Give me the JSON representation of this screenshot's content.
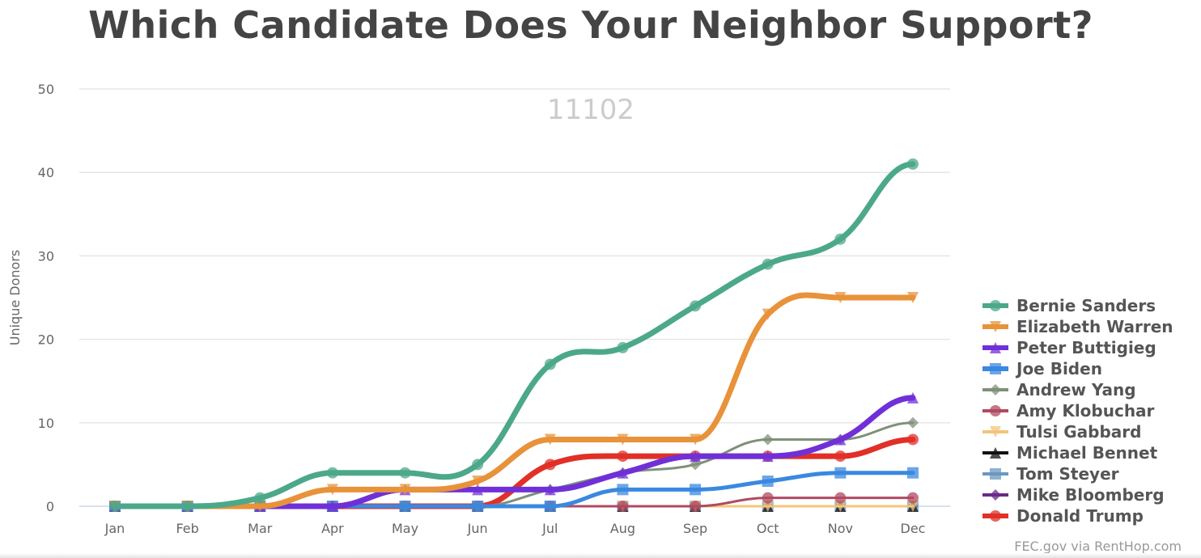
{
  "chart_data": {
    "type": "line",
    "title": "Which Candidate Does Your Neighbor Support?",
    "subtitle": "11102",
    "xlabel": "",
    "ylabel": "Unique Donors",
    "ylim": [
      0,
      50
    ],
    "yticks": [
      "0",
      "10",
      "20",
      "30",
      "40",
      "50"
    ],
    "categories": [
      "Jan",
      "Feb",
      "Mar",
      "Apr",
      "May",
      "Jun",
      "Jul",
      "Aug",
      "Sep",
      "Oct",
      "Nov",
      "Dec"
    ],
    "grid": true,
    "legend_position": "right",
    "credits": "FEC.gov via RentHop.com",
    "series": [
      {
        "name": "Bernie Sanders",
        "color": "#4ca88a",
        "marker": "circle",
        "weight": "thick",
        "values": [
          0,
          0,
          1,
          4,
          4,
          5,
          17,
          19,
          24,
          29,
          32,
          41
        ]
      },
      {
        "name": "Elizabeth Warren",
        "color": "#e8923a",
        "marker": "triangle-down",
        "weight": "thick",
        "values": [
          0,
          0,
          0,
          2,
          2,
          3,
          8,
          8,
          8,
          23,
          25,
          25
        ]
      },
      {
        "name": "Peter Buttigieg",
        "color": "#7030d8",
        "marker": "triangle",
        "weight": "thick",
        "values": [
          0,
          0,
          0,
          0,
          2,
          2,
          2,
          4,
          6,
          6,
          8,
          13
        ]
      },
      {
        "name": "Joe Biden",
        "color": "#3a88e0",
        "marker": "square",
        "weight": "medium",
        "values": [
          0,
          0,
          0,
          0,
          0,
          0,
          0,
          2,
          2,
          3,
          4,
          4
        ]
      },
      {
        "name": "Andrew Yang",
        "color": "#7f9078",
        "marker": "diamond",
        "weight": "thin",
        "values": [
          0,
          0,
          0,
          0,
          0,
          0,
          2,
          4,
          5,
          8,
          8,
          10
        ]
      },
      {
        "name": "Amy Klobuchar",
        "color": "#b04a60",
        "marker": "circle",
        "weight": "thin",
        "values": [
          0,
          0,
          0,
          0,
          0,
          0,
          0,
          0,
          0,
          1,
          1,
          1
        ]
      },
      {
        "name": "Tulsi Gabbard",
        "color": "#f4c47a",
        "marker": "triangle-down",
        "weight": "thin",
        "values": [
          0,
          0,
          0,
          0,
          0,
          0,
          0,
          0,
          0,
          0,
          0,
          0
        ]
      },
      {
        "name": "Michael Bennet",
        "color": "#111111",
        "marker": "triangle",
        "weight": "thin",
        "values": [
          0,
          0,
          0,
          0,
          0,
          0,
          0,
          0,
          0,
          0,
          0,
          0
        ]
      },
      {
        "name": "Tom Steyer",
        "color": "#6a98c0",
        "marker": "square",
        "weight": "thin",
        "values": [
          0,
          0,
          0,
          0,
          0,
          0,
          0,
          0,
          0,
          0,
          0,
          0
        ]
      },
      {
        "name": "Mike Bloomberg",
        "color": "#6a2a8a",
        "marker": "diamond",
        "weight": "thin",
        "values": [
          0,
          0,
          0,
          0,
          0,
          0,
          0,
          0,
          0,
          0,
          0,
          0
        ]
      },
      {
        "name": "Donald Trump",
        "color": "#e03028",
        "marker": "circle",
        "weight": "thick",
        "values": [
          0,
          0,
          0,
          0,
          0,
          0,
          5,
          6,
          6,
          6,
          6,
          8
        ]
      }
    ]
  }
}
